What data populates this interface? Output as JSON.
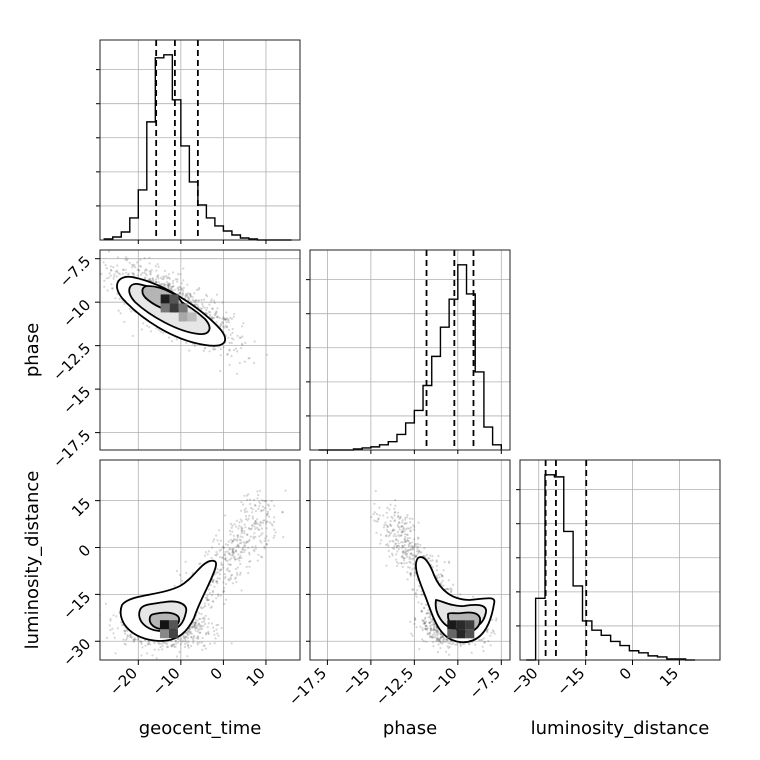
{
  "chart_data": {
    "type": "corner",
    "parameters": [
      {
        "name": "geocent_time",
        "label": "geocent_time",
        "range": [
          -29,
          18
        ],
        "ticks": [
          -20,
          -10,
          0,
          10
        ]
      },
      {
        "name": "phase",
        "label": "phase",
        "range": [
          -18.5,
          -7.0
        ],
        "ticks": [
          -17.5,
          -15.0,
          -12.5,
          -10.0,
          -7.5
        ]
      },
      {
        "name": "luminosity_distance",
        "label": "luminosity_distance",
        "range": [
          -36,
          28
        ],
        "ticks": [
          -30,
          -15,
          0,
          15
        ]
      }
    ],
    "histograms": [
      {
        "parameter": "geocent_time",
        "bin_edges": [
          -28,
          -26,
          -24,
          -22,
          -20,
          -18,
          -16,
          -14,
          -12,
          -10,
          -8,
          -6,
          -4,
          -2,
          0,
          2,
          4,
          6,
          8,
          10,
          12,
          14,
          16
        ],
        "counts": [
          1,
          3,
          8,
          22,
          50,
          118,
          182,
          185,
          140,
          94,
          58,
          35,
          22,
          14,
          9,
          5,
          2,
          1,
          0,
          0,
          0,
          0
        ],
        "quantiles": [
          -15.8,
          -11.4,
          -6.0
        ]
      },
      {
        "parameter": "phase",
        "bin_edges": [
          -18.0,
          -17.5,
          -17.0,
          -16.5,
          -16.0,
          -15.5,
          -15.0,
          -14.5,
          -14.0,
          -13.5,
          -13.0,
          -12.5,
          -12.0,
          -11.5,
          -11.0,
          -10.5,
          -10.0,
          -9.5,
          -9.0,
          -8.5,
          -8.0,
          -7.5
        ],
        "counts": [
          0,
          0,
          0,
          0,
          1,
          2,
          3,
          5,
          8,
          15,
          26,
          38,
          62,
          90,
          118,
          145,
          178,
          150,
          75,
          22,
          5
        ],
        "quantiles": [
          -11.8,
          -10.2,
          -9.1
        ]
      },
      {
        "parameter": "luminosity_distance",
        "bin_edges": [
          -34,
          -31,
          -28,
          -25,
          -22,
          -19,
          -16,
          -13,
          -10,
          -7,
          -4,
          -1,
          2,
          5,
          8,
          11,
          14,
          17,
          20
        ],
        "counts": [
          0,
          60,
          180,
          178,
          125,
          72,
          38,
          29,
          24,
          18,
          14,
          9,
          7,
          4,
          3,
          1,
          1,
          0
        ],
        "quantiles": [
          -27.8,
          -24.5,
          -14.8
        ]
      }
    ],
    "joint": [
      {
        "x": "geocent_time",
        "y": "phase",
        "mode": {
          "x": -12.4,
          "y": -9.9
        }
      },
      {
        "x": "geocent_time",
        "y": "luminosity_distance",
        "mode": {
          "x": -13.5,
          "y": -25.5
        }
      },
      {
        "x": "phase",
        "y": "luminosity_distance",
        "mode": {
          "x": -9.8,
          "y": -26.5
        }
      }
    ],
    "grid": true,
    "contour_levels": 3
  }
}
